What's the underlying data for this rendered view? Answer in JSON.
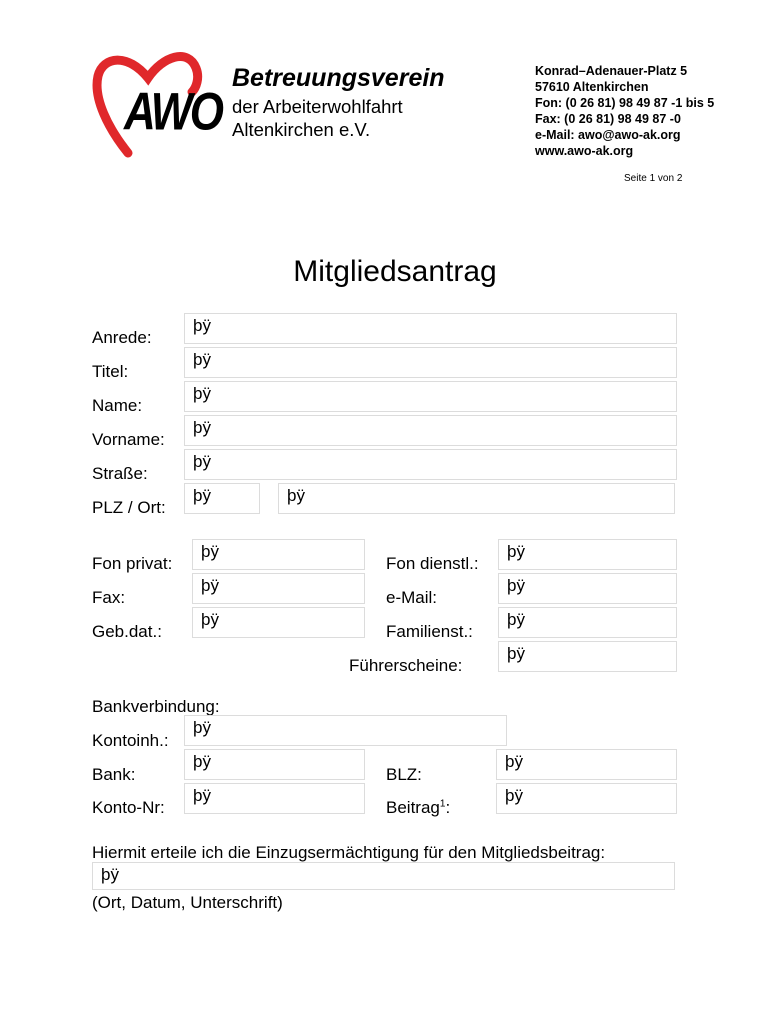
{
  "logo": {
    "text": "AWO",
    "heart_color": "#e0282b"
  },
  "org": {
    "name": "Betreuungsverein",
    "line2": "der Arbeiterwohlfahrt",
    "line3": "Altenkirchen e.V."
  },
  "contact": [
    "Konrad–Adenauer-Platz 5",
    "57610 Altenkirchen",
    "Fon:  (0 26 81) 98 49 87 -1 bis 5",
    "Fax:  (0 26 81) 98 49 87 -0",
    "e-Mail: awo@awo-ak.org",
    "www.awo-ak.org"
  ],
  "page_indicator": "Seite 1 von 2",
  "title": "Mitgliedsantrag",
  "fields": {
    "anrede": {
      "label": "Anrede:",
      "value": "þÿ"
    },
    "titel": {
      "label": "Titel:",
      "value": "þÿ"
    },
    "name": {
      "label": "Name:",
      "value": "þÿ"
    },
    "vorname": {
      "label": "Vorname:",
      "value": "þÿ"
    },
    "strasse": {
      "label": "Straße:",
      "value": "þÿ"
    },
    "plz_ort": {
      "label": "PLZ / Ort:",
      "plz": "þÿ",
      "ort": "þÿ"
    },
    "fon_privat": {
      "label": "Fon privat:",
      "value": "þÿ"
    },
    "fax": {
      "label": "Fax:",
      "value": "þÿ"
    },
    "gebdat": {
      "label": "Geb.dat.:",
      "value": "þÿ"
    },
    "fon_dienstl": {
      "label": "Fon dienstl.:",
      "value": "þÿ"
    },
    "email": {
      "label": "e-Mail:",
      "value": "þÿ"
    },
    "familienst": {
      "label": "Familienst.:",
      "value": "þÿ"
    },
    "fuehrerscheine": {
      "label": "Führerscheine:",
      "value": "þÿ"
    },
    "bank_heading": "Bankverbindung:",
    "kontoinh": {
      "label": "Kontoinh.:",
      "value": "þÿ"
    },
    "bank": {
      "label": "Bank:",
      "value": "þÿ"
    },
    "blz": {
      "label": "BLZ:",
      "value": "þÿ"
    },
    "kontonr": {
      "label": "Konto-Nr:",
      "value": "þÿ"
    },
    "beitrag": {
      "label": "Beitrag",
      "sup": "1",
      "colon": ":",
      "value": "þÿ"
    },
    "einzug": {
      "label": "Hiermit erteile ich die Einzugsermächtigung für den Mitgliedsbeitrag:",
      "value": "þÿ",
      "caption": "(Ort, Datum, Unterschrift)"
    }
  }
}
